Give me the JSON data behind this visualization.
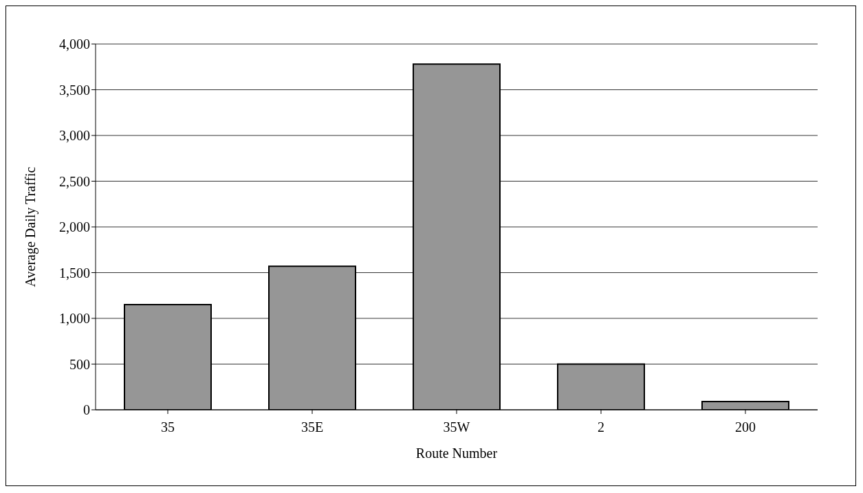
{
  "chart_data": {
    "type": "bar",
    "xlabel": "Route Number",
    "ylabel": "Average Daily Traffic",
    "categories": [
      "35",
      "35E",
      "35W",
      "2",
      "200"
    ],
    "values": [
      1150,
      1570,
      3780,
      500,
      90
    ],
    "color": "#969696",
    "ylim": [
      0,
      4000
    ],
    "yticks": [
      {
        "value": 0,
        "label": "0"
      },
      {
        "value": 500,
        "label": "500"
      },
      {
        "value": 1000,
        "label": "1,000"
      },
      {
        "value": 1500,
        "label": "1,500"
      },
      {
        "value": 2000,
        "label": "2,000"
      },
      {
        "value": 2500,
        "label": "2,500"
      },
      {
        "value": 3000,
        "label": "3,000"
      },
      {
        "value": 3500,
        "label": "3,500"
      },
      {
        "value": 4000,
        "label": "4,000"
      }
    ],
    "grid": "y"
  }
}
